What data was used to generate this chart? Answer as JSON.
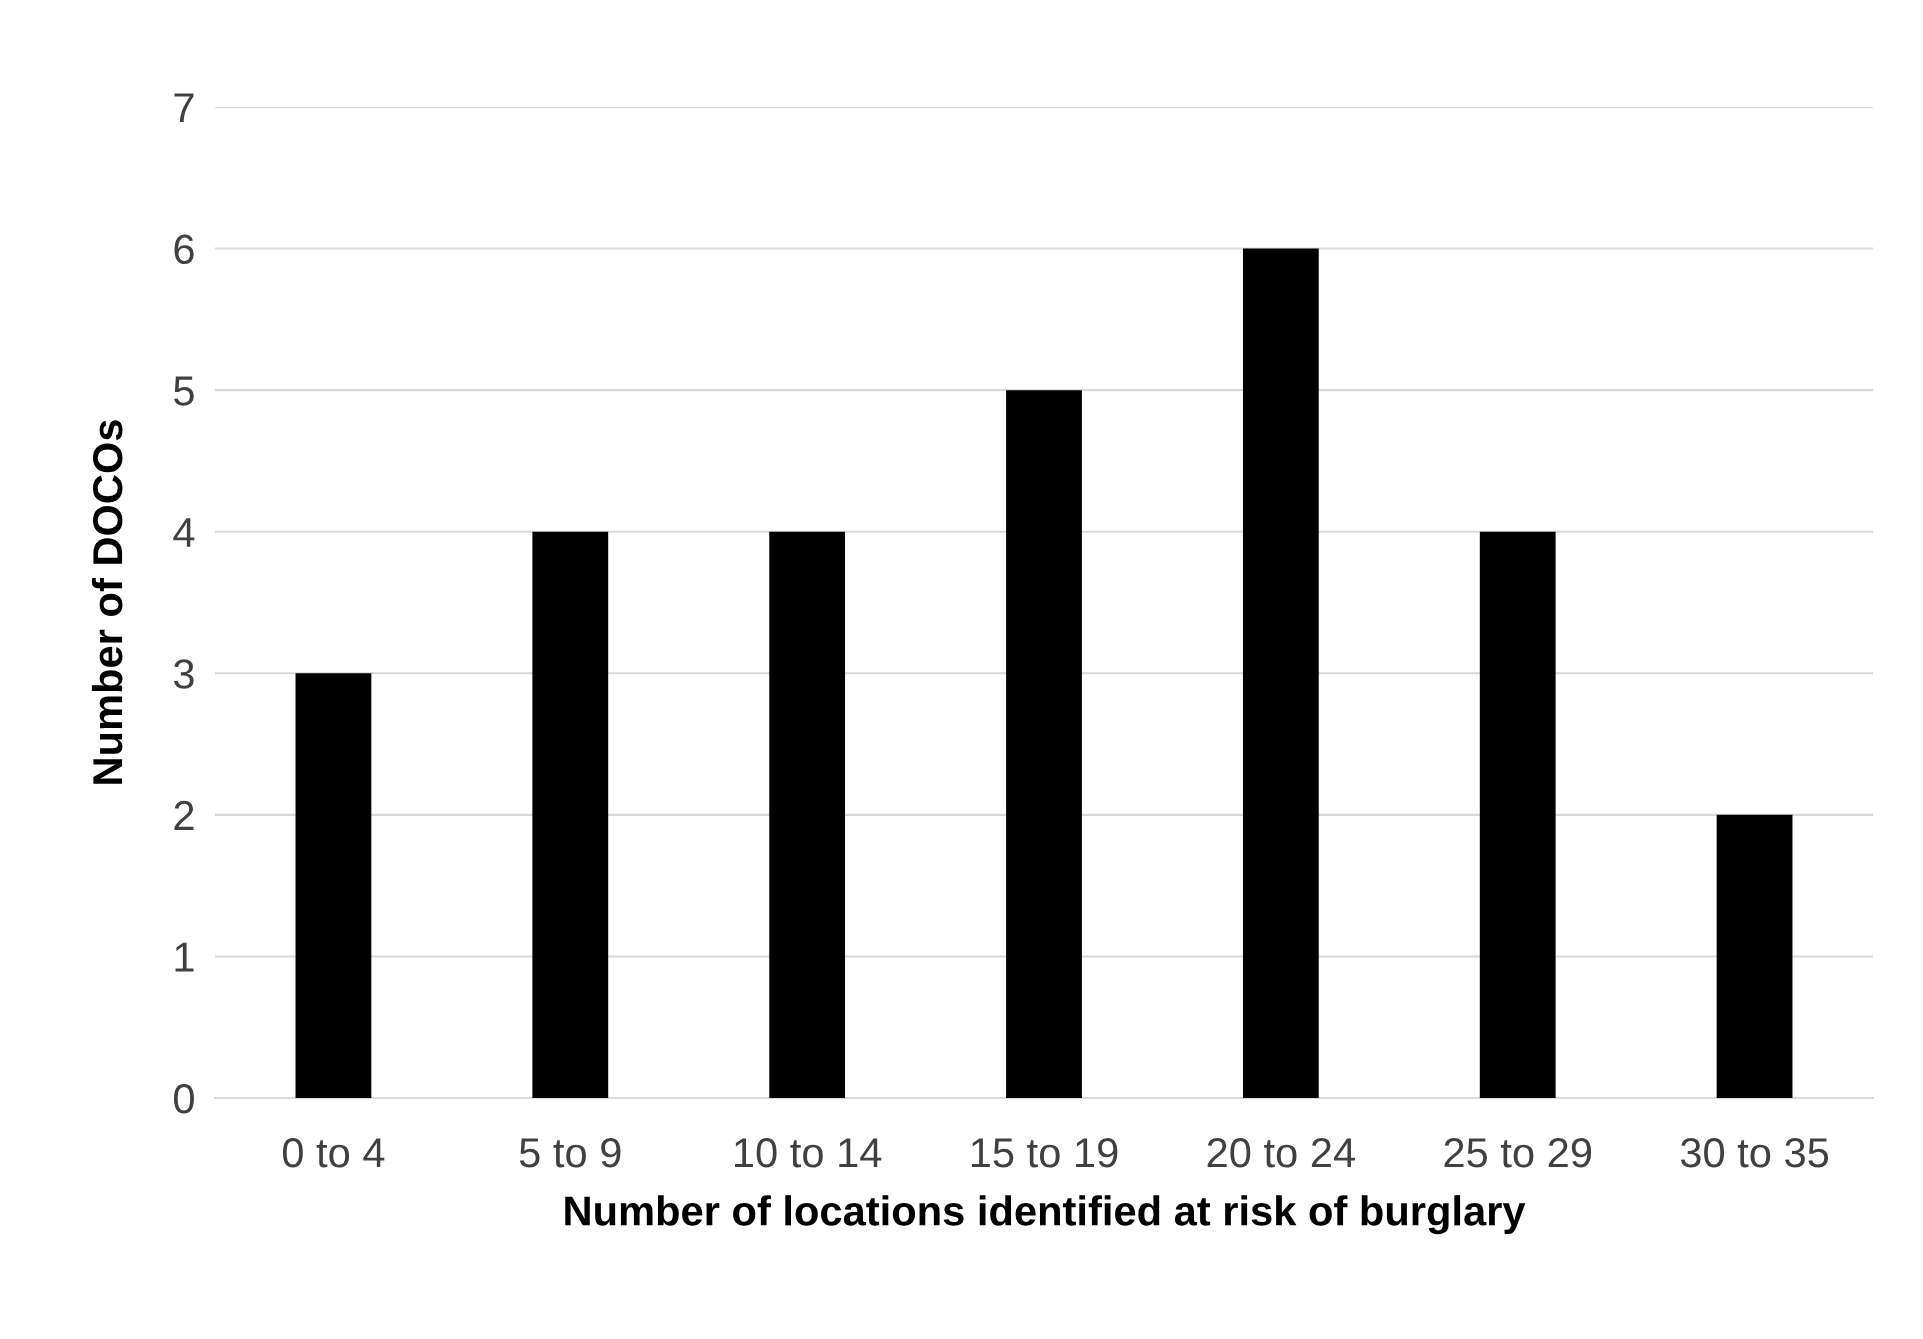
{
  "chart_data": {
    "type": "bar",
    "xlabel": "Number of locations identified at risk of burglary",
    "ylabel": "Number of DOCOs",
    "categories": [
      "0 to 4",
      "5 to 9",
      "10 to 14",
      "15 to 19",
      "20 to 24",
      "25 to 29",
      "30 to 35"
    ],
    "values": [
      3,
      4,
      4,
      5,
      6,
      4,
      2
    ],
    "color": "#000000",
    "ylim": [
      0,
      7
    ],
    "yticks": [
      0,
      1,
      2,
      3,
      4,
      5,
      6,
      7
    ],
    "grid": "y",
    "legend": false
  }
}
